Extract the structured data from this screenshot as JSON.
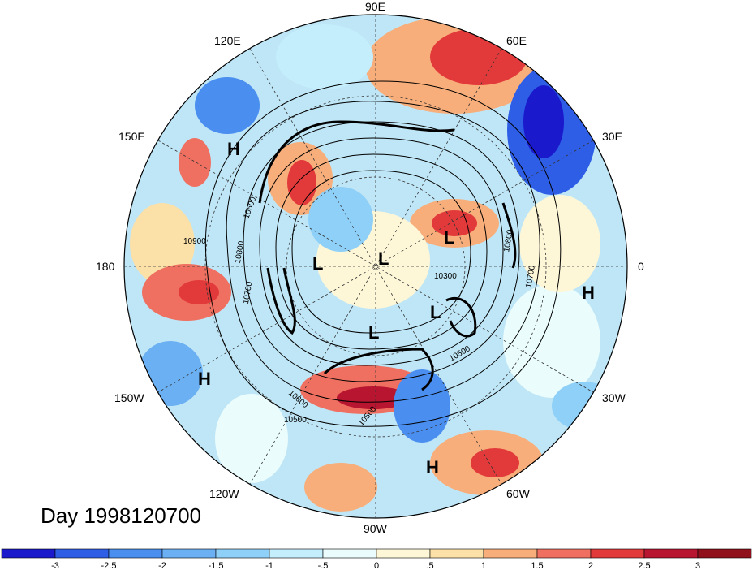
{
  "day_label": "Day 1998120700",
  "longitude_labels": [
    "90E",
    "60E",
    "30E",
    "0",
    "30W",
    "60W",
    "90W",
    "120W",
    "150W",
    "180",
    "150E",
    "120E"
  ],
  "contour_labels": [
    "10900",
    "10800",
    "10700",
    "10600",
    "10500",
    "10500",
    "10600",
    "10700",
    "10800",
    "10300",
    "10500"
  ],
  "pressure_centers": [
    "H",
    "H",
    "H",
    "H",
    "L",
    "L",
    "L",
    "L",
    "L"
  ],
  "colorbar": {
    "ticks": [
      "-3",
      "-2.5",
      "-2",
      "-1.5",
      "-1",
      "-.5",
      "0",
      ".5",
      "1",
      "1.5",
      "2",
      "2.5",
      "3"
    ],
    "colors": [
      "#1a1acc",
      "#2e5ee6",
      "#4a8ef0",
      "#6bb0f2",
      "#8fd0f8",
      "#c4eefc",
      "#eafcfc",
      "#fdf7d8",
      "#fbe0a8",
      "#f8ae7a",
      "#ef7060",
      "#e23a3a",
      "#b81530",
      "#90101c"
    ]
  }
}
